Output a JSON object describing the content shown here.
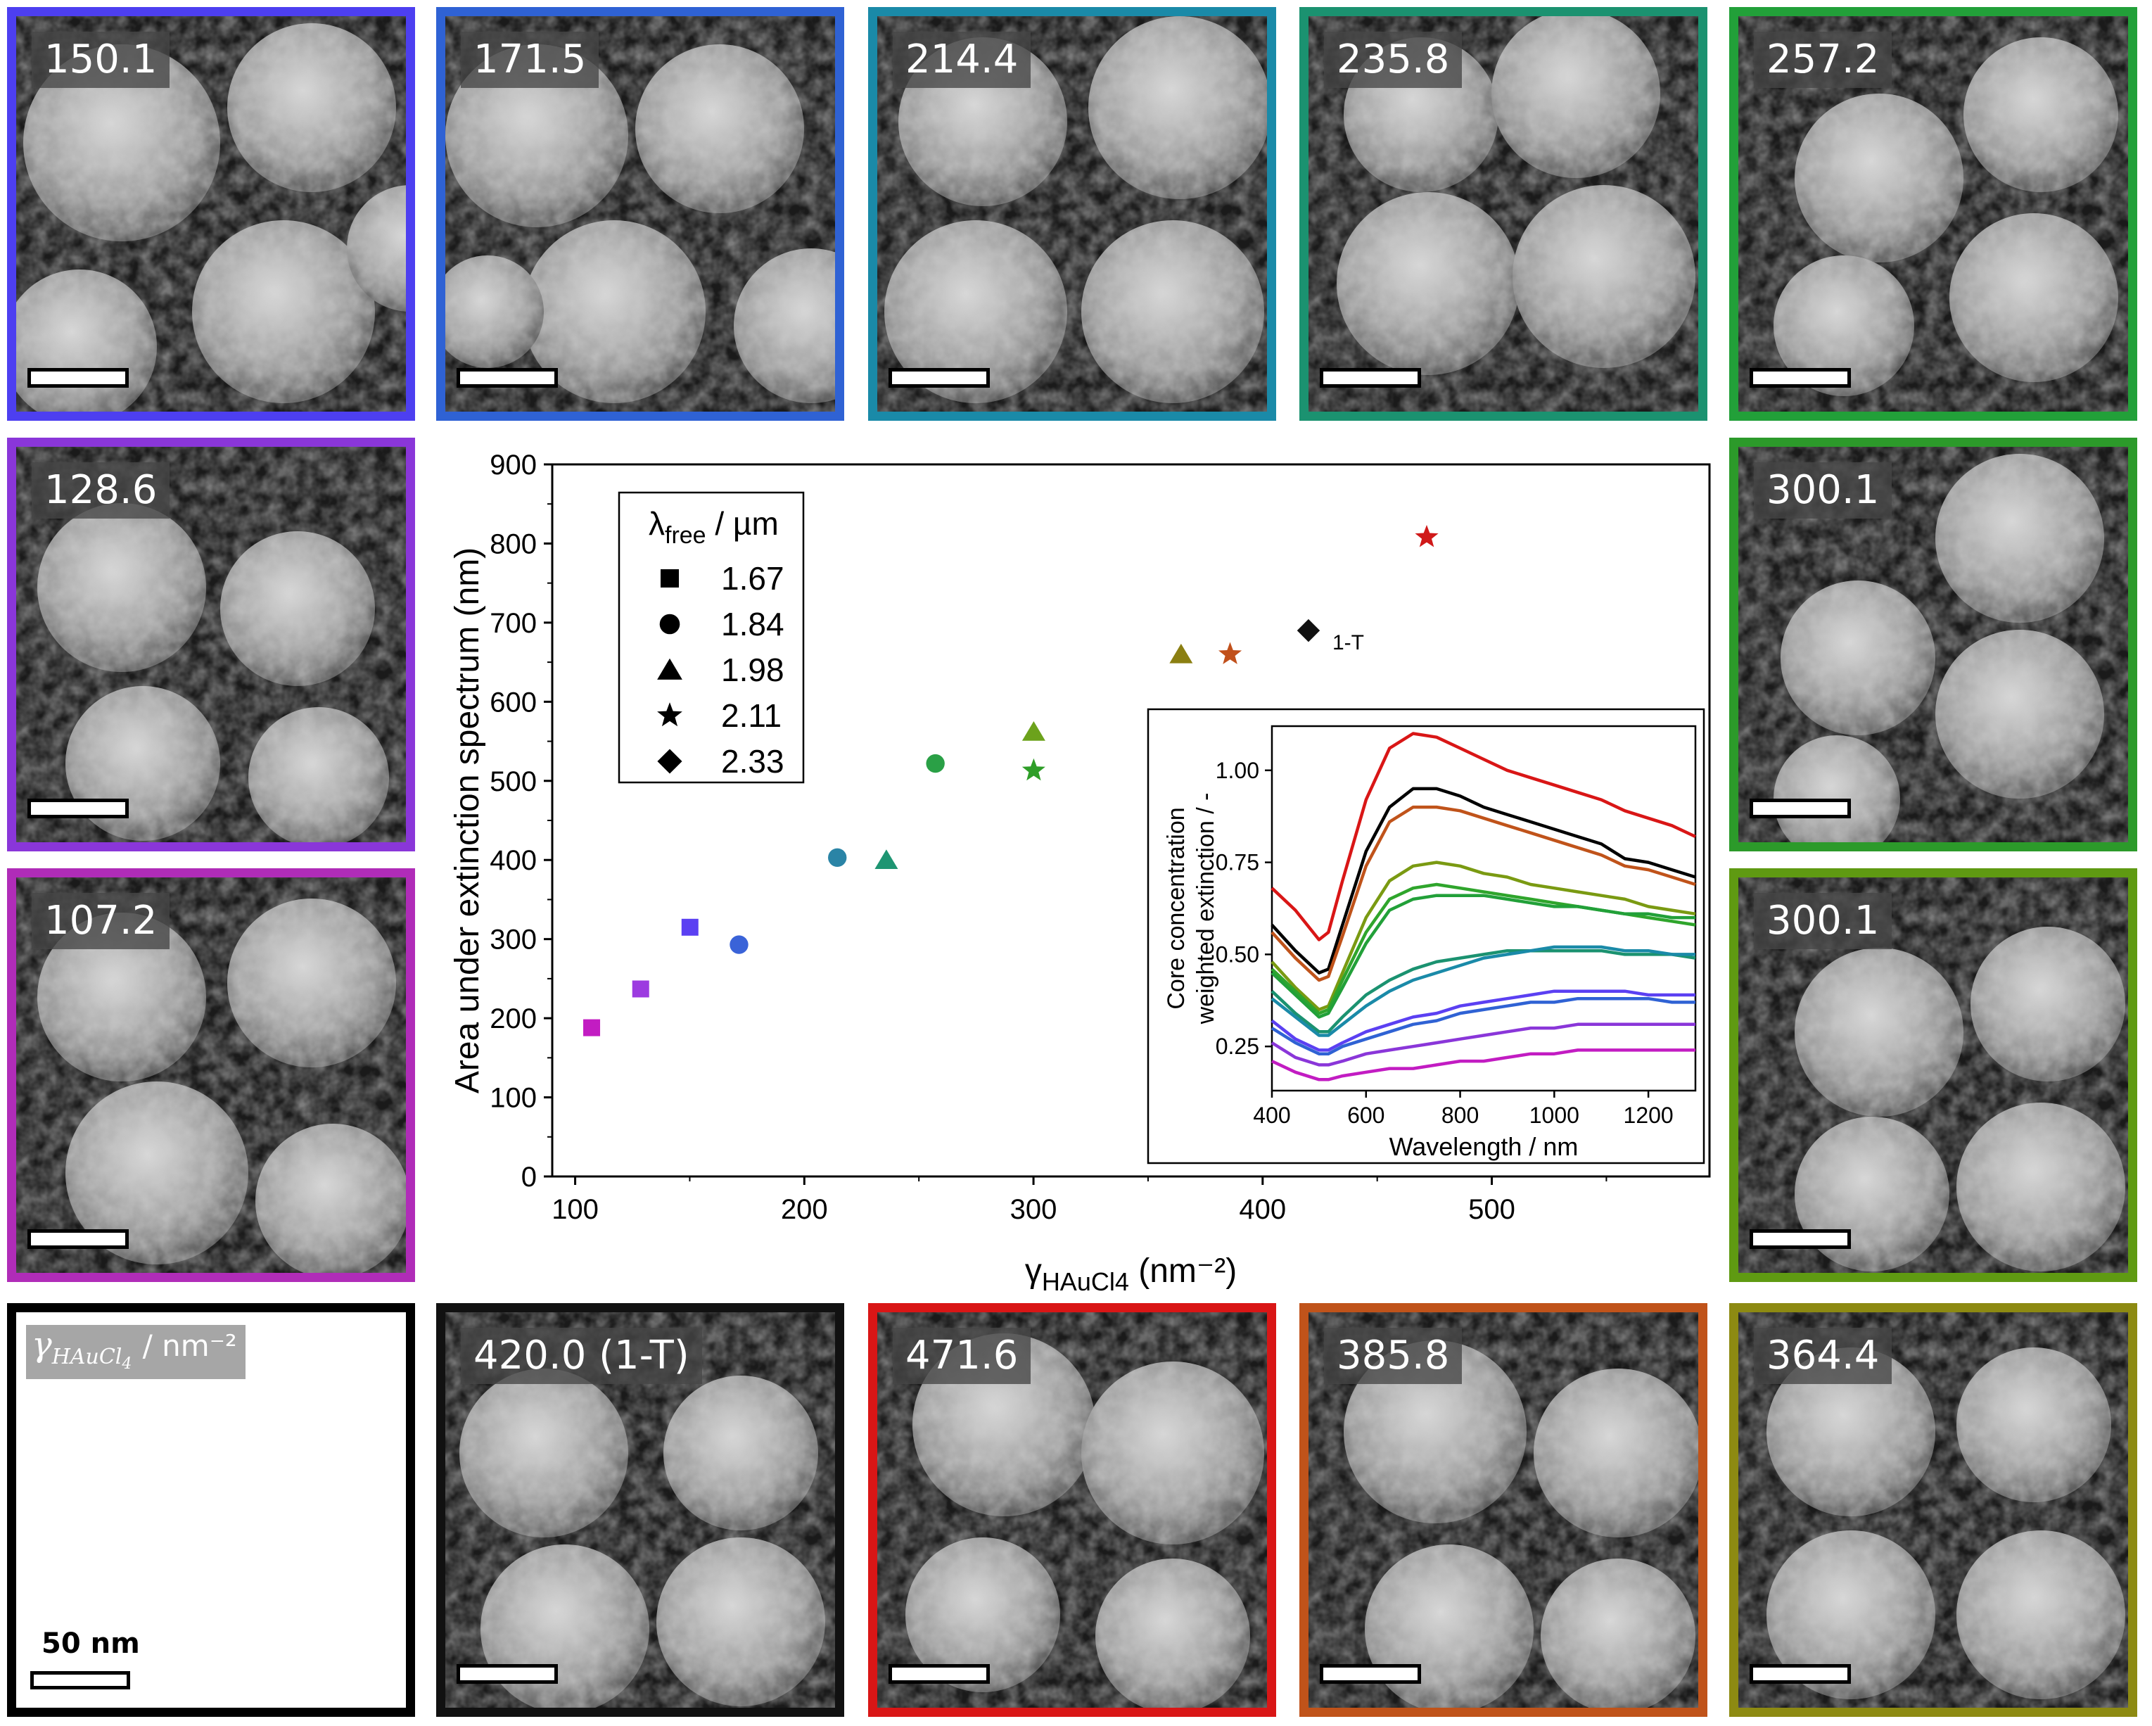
{
  "panels": [
    {
      "id": "p1",
      "label": "150.1",
      "color": "#4d3ff0"
    },
    {
      "id": "p2",
      "label": "171.5",
      "color": "#2f62d4"
    },
    {
      "id": "p3",
      "label": "214.4",
      "color": "#1a8aa8"
    },
    {
      "id": "p4",
      "label": "235.8",
      "color": "#1b9270"
    },
    {
      "id": "p5",
      "label": "257.2",
      "color": "#22a039"
    },
    {
      "id": "p6",
      "label": "128.6",
      "color": "#8a36d9"
    },
    {
      "id": "p7",
      "label": "300.1",
      "color": "#2c9a2a"
    },
    {
      "id": "p8",
      "label": "107.2",
      "color": "#b02cb8"
    },
    {
      "id": "p9",
      "label": "300.1",
      "color": "#5f9a12"
    },
    {
      "id": "p11",
      "label": "420.0 (1-T)",
      "color": "#111111"
    },
    {
      "id": "p12",
      "label": "471.6",
      "color": "#d91616"
    },
    {
      "id": "p13",
      "label": "385.8",
      "color": "#c0531a"
    },
    {
      "id": "p14",
      "label": "364.4",
      "color": "#8d8a12"
    }
  ],
  "legend_panel": {
    "symbol": "γ",
    "subscript": "HAuCl",
    "subscript_index": "4",
    "unit": "/ nm⁻²",
    "scale_label": "50 nm"
  },
  "chart_data": [
    {
      "type": "scatter",
      "xlabel": "γHAuCl4 (nm⁻²)",
      "ylabel": "Area under extinction spectrum (nm)",
      "xlim": [
        90,
        595
      ],
      "ylim": [
        0,
        900
      ],
      "xticks": [
        100,
        200,
        300,
        400,
        500
      ],
      "yticks": [
        0,
        100,
        200,
        300,
        400,
        500,
        600,
        700,
        800,
        900
      ],
      "legend": {
        "title": "λfree / µm",
        "placement": "top-left",
        "entries": [
          {
            "marker": "square",
            "label": "1.67"
          },
          {
            "marker": "circle",
            "label": "1.84"
          },
          {
            "marker": "triangle",
            "label": "1.98"
          },
          {
            "marker": "star",
            "label": "2.11"
          },
          {
            "marker": "diamond",
            "label": "2.33"
          }
        ]
      },
      "points": [
        {
          "x": 107.2,
          "y": 188,
          "marker": "square",
          "color": "#c21cc2"
        },
        {
          "x": 128.6,
          "y": 237,
          "marker": "square",
          "color": "#9c3be0"
        },
        {
          "x": 150.1,
          "y": 315,
          "marker": "square",
          "color": "#5b40f2"
        },
        {
          "x": 171.5,
          "y": 293,
          "marker": "circle",
          "color": "#3a63d8"
        },
        {
          "x": 214.4,
          "y": 403,
          "marker": "circle",
          "color": "#2a84a6"
        },
        {
          "x": 235.8,
          "y": 400,
          "marker": "triangle",
          "color": "#1e9572"
        },
        {
          "x": 257.2,
          "y": 522,
          "marker": "circle",
          "color": "#2aa046"
        },
        {
          "x": 300.1,
          "y": 513,
          "marker": "star",
          "color": "#2f9e28"
        },
        {
          "x": 300.1,
          "y": 562,
          "marker": "triangle",
          "color": "#6ca21c"
        },
        {
          "x": 364.4,
          "y": 660,
          "marker": "triangle",
          "color": "#8b7f12"
        },
        {
          "x": 385.8,
          "y": 660,
          "marker": "star",
          "color": "#c1501b"
        },
        {
          "x": 420.0,
          "y": 690,
          "marker": "diamond",
          "color": "#111111"
        },
        {
          "x": 471.6,
          "y": 808,
          "marker": "star",
          "color": "#d01919"
        }
      ],
      "annotations": [
        {
          "text": "1-T",
          "near_x": 420.0,
          "near_y": 690
        }
      ]
    },
    {
      "type": "line",
      "xlabel": "Wavelength / nm",
      "ylabel": "Core concentration weighted extinction / -",
      "ylabel_lines": [
        "Core concentration",
        "weighted extinction / -"
      ],
      "xlim": [
        400,
        1300
      ],
      "ylim": [
        0.13,
        1.12
      ],
      "xticks": [
        400,
        600,
        800,
        1000,
        1200
      ],
      "yticks": [
        0.25,
        0.5,
        0.75,
        1.0
      ],
      "ytick_labels": [
        "0.25",
        "0.50",
        "0.75",
        "1.00"
      ],
      "x": [
        400,
        450,
        500,
        520,
        550,
        600,
        650,
        700,
        750,
        800,
        850,
        900,
        950,
        1000,
        1050,
        1100,
        1150,
        1200,
        1250,
        1300
      ],
      "series": [
        {
          "color": "#d91616",
          "values": [
            0.68,
            0.62,
            0.54,
            0.56,
            0.7,
            0.92,
            1.06,
            1.1,
            1.09,
            1.06,
            1.03,
            1.0,
            0.98,
            0.96,
            0.94,
            0.92,
            0.89,
            0.87,
            0.85,
            0.82
          ]
        },
        {
          "color": "#000000",
          "values": [
            0.58,
            0.51,
            0.45,
            0.46,
            0.58,
            0.78,
            0.9,
            0.95,
            0.95,
            0.93,
            0.9,
            0.88,
            0.86,
            0.84,
            0.82,
            0.8,
            0.76,
            0.75,
            0.73,
            0.71
          ]
        },
        {
          "color": "#c0531a",
          "values": [
            0.56,
            0.49,
            0.43,
            0.44,
            0.55,
            0.74,
            0.86,
            0.9,
            0.9,
            0.89,
            0.87,
            0.85,
            0.83,
            0.81,
            0.79,
            0.77,
            0.74,
            0.73,
            0.71,
            0.69
          ]
        },
        {
          "color": "#7a9a12",
          "values": [
            0.48,
            0.41,
            0.35,
            0.36,
            0.45,
            0.6,
            0.7,
            0.74,
            0.75,
            0.74,
            0.72,
            0.71,
            0.69,
            0.68,
            0.67,
            0.66,
            0.65,
            0.63,
            0.62,
            0.61
          ]
        },
        {
          "color": "#2fa52c",
          "values": [
            0.46,
            0.4,
            0.34,
            0.35,
            0.43,
            0.56,
            0.65,
            0.68,
            0.69,
            0.68,
            0.67,
            0.66,
            0.65,
            0.64,
            0.63,
            0.62,
            0.61,
            0.6,
            0.59,
            0.58
          ]
        },
        {
          "color": "#22a039",
          "values": [
            0.45,
            0.39,
            0.33,
            0.34,
            0.41,
            0.53,
            0.62,
            0.65,
            0.66,
            0.66,
            0.66,
            0.65,
            0.64,
            0.63,
            0.63,
            0.62,
            0.61,
            0.61,
            0.6,
            0.6
          ]
        },
        {
          "color": "#1b9270",
          "values": [
            0.4,
            0.34,
            0.29,
            0.29,
            0.33,
            0.39,
            0.43,
            0.46,
            0.48,
            0.49,
            0.5,
            0.51,
            0.51,
            0.51,
            0.51,
            0.51,
            0.5,
            0.5,
            0.5,
            0.49
          ]
        },
        {
          "color": "#1a8aa8",
          "values": [
            0.38,
            0.33,
            0.28,
            0.28,
            0.31,
            0.36,
            0.4,
            0.43,
            0.45,
            0.47,
            0.49,
            0.5,
            0.51,
            0.52,
            0.52,
            0.52,
            0.51,
            0.51,
            0.5,
            0.5
          ]
        },
        {
          "color": "#5b40f2",
          "values": [
            0.32,
            0.27,
            0.24,
            0.24,
            0.26,
            0.29,
            0.31,
            0.33,
            0.34,
            0.36,
            0.37,
            0.38,
            0.39,
            0.4,
            0.4,
            0.4,
            0.4,
            0.39,
            0.39,
            0.39
          ]
        },
        {
          "color": "#2f62d4",
          "values": [
            0.3,
            0.26,
            0.23,
            0.23,
            0.25,
            0.27,
            0.29,
            0.31,
            0.32,
            0.34,
            0.35,
            0.36,
            0.37,
            0.37,
            0.38,
            0.38,
            0.38,
            0.38,
            0.37,
            0.37
          ]
        },
        {
          "color": "#8a36d9",
          "values": [
            0.26,
            0.22,
            0.2,
            0.2,
            0.21,
            0.23,
            0.24,
            0.25,
            0.26,
            0.27,
            0.28,
            0.29,
            0.3,
            0.3,
            0.31,
            0.31,
            0.31,
            0.31,
            0.31,
            0.31
          ]
        },
        {
          "color": "#c21cc2",
          "values": [
            0.21,
            0.18,
            0.16,
            0.16,
            0.17,
            0.18,
            0.19,
            0.19,
            0.2,
            0.21,
            0.21,
            0.22,
            0.23,
            0.23,
            0.24,
            0.24,
            0.24,
            0.24,
            0.24,
            0.24
          ]
        }
      ]
    }
  ]
}
